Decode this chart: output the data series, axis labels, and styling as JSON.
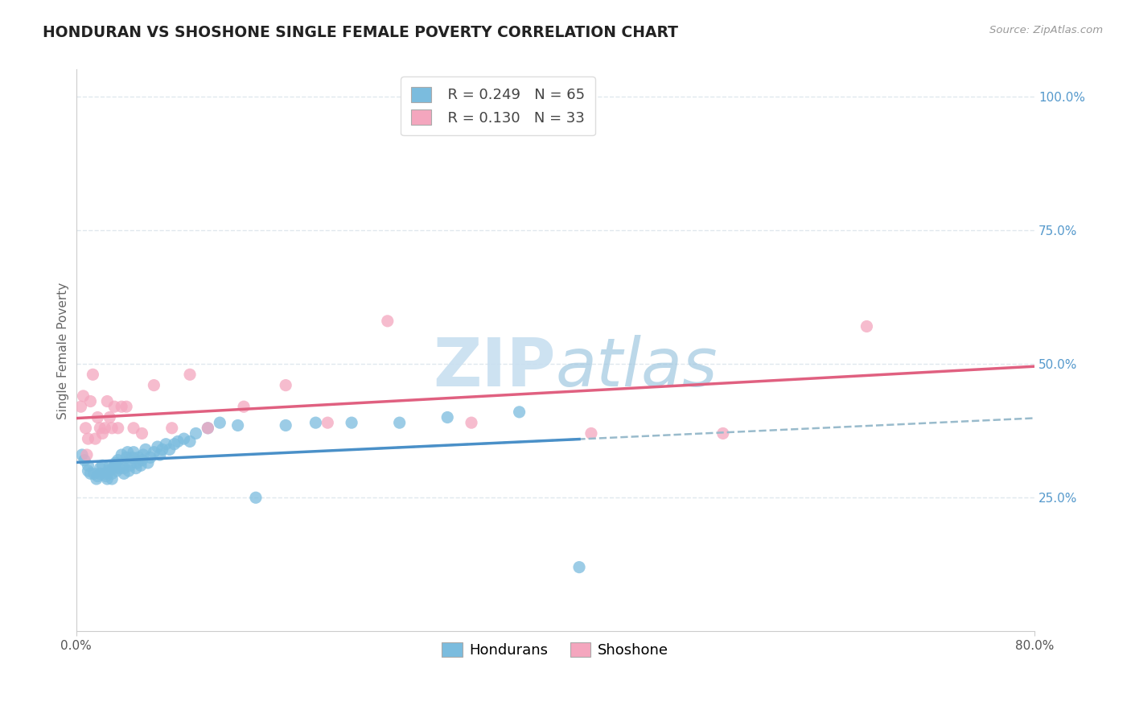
{
  "title": "HONDURAN VS SHOSHONE SINGLE FEMALE POVERTY CORRELATION CHART",
  "source": "Source: ZipAtlas.com",
  "ylabel": "Single Female Poverty",
  "xlim": [
    0.0,
    0.8
  ],
  "ylim": [
    0.0,
    1.05
  ],
  "ytick_vals": [
    0.25,
    0.5,
    0.75,
    1.0
  ],
  "ytick_labels_right": [
    "25.0%",
    "50.0%",
    "75.0%",
    "100.0%"
  ],
  "xtick_vals": [
    0.0,
    0.8
  ],
  "xtick_labels": [
    "0.0%",
    "80.0%"
  ],
  "legend_r1": "R = 0.249",
  "legend_n1": "N = 65",
  "legend_r2": "R = 0.130",
  "legend_n2": "N = 33",
  "honduran_scatter_color": "#7bbcde",
  "shoshone_scatter_color": "#f4a6be",
  "honduran_line_color": "#4a90c8",
  "shoshone_line_color": "#e06080",
  "dashed_line_color": "#99bbcc",
  "watermark_color": "#c8dff0",
  "title_color": "#222222",
  "source_color": "#999999",
  "grid_color": "#e0e8ee",
  "background_color": "#ffffff",
  "title_fontsize": 13.5,
  "label_fontsize": 11,
  "tick_fontsize": 11,
  "legend_fontsize": 13,
  "hondurans_x": [
    0.005,
    0.007,
    0.01,
    0.01,
    0.012,
    0.015,
    0.017,
    0.018,
    0.02,
    0.02,
    0.022,
    0.024,
    0.025,
    0.026,
    0.027,
    0.028,
    0.03,
    0.03,
    0.031,
    0.032,
    0.033,
    0.034,
    0.035,
    0.036,
    0.038,
    0.04,
    0.04,
    0.041,
    0.042,
    0.043,
    0.044,
    0.045,
    0.047,
    0.048,
    0.05,
    0.051,
    0.052,
    0.054,
    0.055,
    0.056,
    0.058,
    0.06,
    0.062,
    0.065,
    0.068,
    0.07,
    0.072,
    0.075,
    0.078,
    0.082,
    0.085,
    0.09,
    0.095,
    0.1,
    0.11,
    0.12,
    0.135,
    0.15,
    0.175,
    0.2,
    0.23,
    0.27,
    0.31,
    0.37,
    0.42
  ],
  "hondurans_y": [
    0.33,
    0.32,
    0.3,
    0.31,
    0.295,
    0.295,
    0.285,
    0.29,
    0.295,
    0.305,
    0.31,
    0.295,
    0.29,
    0.285,
    0.3,
    0.31,
    0.285,
    0.295,
    0.305,
    0.31,
    0.315,
    0.3,
    0.32,
    0.305,
    0.33,
    0.295,
    0.305,
    0.315,
    0.325,
    0.335,
    0.3,
    0.31,
    0.325,
    0.335,
    0.305,
    0.315,
    0.325,
    0.31,
    0.32,
    0.33,
    0.34,
    0.315,
    0.325,
    0.335,
    0.345,
    0.33,
    0.34,
    0.35,
    0.34,
    0.35,
    0.355,
    0.36,
    0.355,
    0.37,
    0.38,
    0.39,
    0.385,
    0.25,
    0.385,
    0.39,
    0.39,
    0.39,
    0.4,
    0.41,
    0.12
  ],
  "shoshone_x": [
    0.004,
    0.006,
    0.008,
    0.009,
    0.01,
    0.012,
    0.014,
    0.016,
    0.018,
    0.02,
    0.022,
    0.024,
    0.026,
    0.028,
    0.03,
    0.032,
    0.035,
    0.038,
    0.042,
    0.048,
    0.055,
    0.065,
    0.08,
    0.095,
    0.11,
    0.14,
    0.175,
    0.21,
    0.26,
    0.33,
    0.43,
    0.54,
    0.66
  ],
  "shoshone_y": [
    0.42,
    0.44,
    0.38,
    0.33,
    0.36,
    0.43,
    0.48,
    0.36,
    0.4,
    0.38,
    0.37,
    0.38,
    0.43,
    0.4,
    0.38,
    0.42,
    0.38,
    0.42,
    0.42,
    0.38,
    0.37,
    0.46,
    0.38,
    0.48,
    0.38,
    0.42,
    0.46,
    0.39,
    0.58,
    0.39,
    0.37,
    0.37,
    0.57
  ],
  "h_line_x0": 0.0,
  "h_line_x1": 0.42,
  "s_line_x0": 0.0,
  "s_line_x1": 0.8,
  "dash_line_x0": 0.25,
  "dash_line_x1": 0.8
}
